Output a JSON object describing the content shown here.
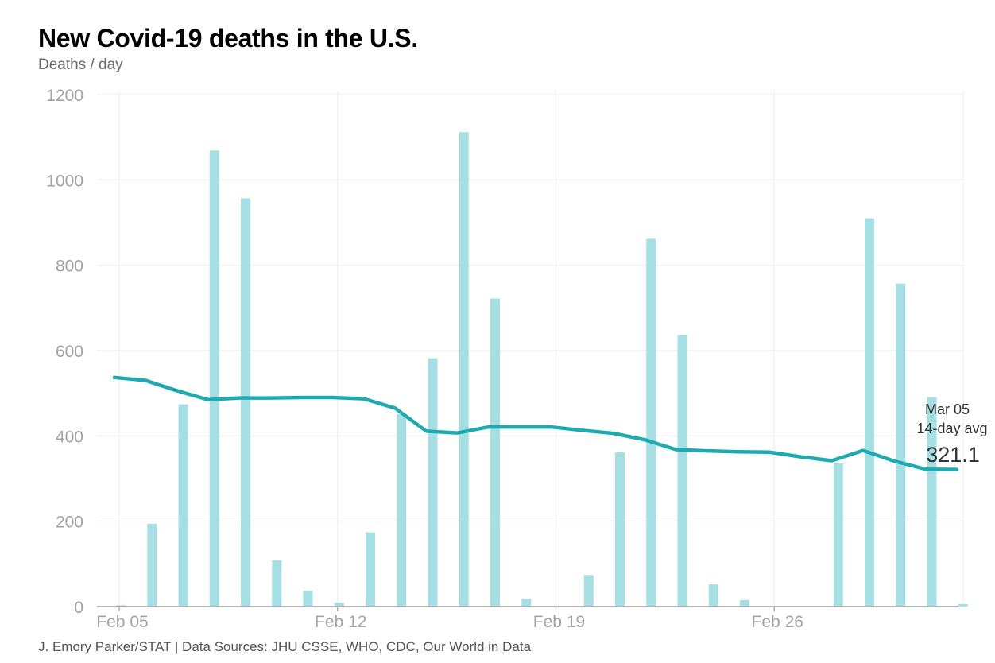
{
  "chart_data": {
    "type": "bar",
    "title": "New Covid-19 deaths in the U.S.",
    "subtitle": "Deaths / day",
    "xlabel": "",
    "ylabel": "Deaths / day",
    "ylim": [
      0,
      1200
    ],
    "yticks": [
      0,
      200,
      400,
      600,
      800,
      1000,
      1200
    ],
    "xtick_labels": [
      {
        "label": "Feb 05",
        "index": 0
      },
      {
        "label": "Feb 12",
        "index": 7
      },
      {
        "label": "Feb 19",
        "index": 14
      },
      {
        "label": "Feb 26",
        "index": 21
      }
    ],
    "grid": true,
    "categories": [
      "Feb 05",
      "Feb 06",
      "Feb 07",
      "Feb 08",
      "Feb 09",
      "Feb 10",
      "Feb 11",
      "Feb 12",
      "Feb 13",
      "Feb 14",
      "Feb 15",
      "Feb 16",
      "Feb 17",
      "Feb 18",
      "Feb 19",
      "Feb 20",
      "Feb 21",
      "Feb 22",
      "Feb 23",
      "Feb 24",
      "Feb 25",
      "Feb 26",
      "Feb 27",
      "Feb 28",
      "Mar 01",
      "Mar 02",
      "Mar 03",
      "Mar 04"
    ],
    "series": [
      {
        "name": "New deaths",
        "type": "bar",
        "color": "#a6dfe3",
        "values": [
          3,
          194,
          474,
          1069,
          957,
          108,
          37,
          9,
          174,
          451,
          582,
          1112,
          722,
          18,
          1,
          74,
          362,
          862,
          636,
          52,
          15,
          0,
          0,
          336,
          910,
          757,
          491,
          6
        ]
      },
      {
        "name": "14-day avg",
        "type": "line",
        "color": "#1fa9b1",
        "values": [
          537,
          530,
          506,
          485,
          489,
          489,
          490,
          490,
          487,
          465,
          411,
          407,
          421,
          421,
          421,
          413,
          406,
          391,
          368,
          365,
          363,
          362,
          351,
          342,
          366,
          341,
          322,
          321.1
        ]
      }
    ],
    "annotation": {
      "date": "Mar 05",
      "label": "14-day avg",
      "value": "321.1"
    },
    "source": "J. Emory Parker/STAT | Data Sources: JHU CSSE, WHO, CDC, Our World in Data"
  }
}
